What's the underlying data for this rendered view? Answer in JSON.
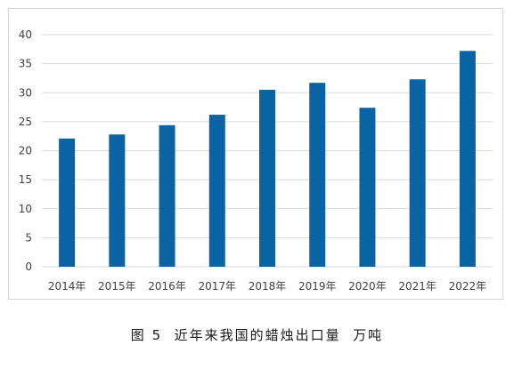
{
  "caption": "图 5  近年来我国的蜡烛出口量  万吨",
  "colors": {
    "bar": "#0a64a4",
    "grid": "#d9d9d9",
    "axis_text": "#404040"
  },
  "chart_data": {
    "type": "bar",
    "title": "",
    "xlabel": "",
    "ylabel": "",
    "categories": [
      "2014年",
      "2015年",
      "2016年",
      "2017年",
      "2018年",
      "2019年",
      "2020年",
      "2021年",
      "2022年"
    ],
    "values": [
      22.1,
      22.8,
      24.4,
      26.2,
      30.5,
      31.7,
      27.4,
      32.3,
      37.2
    ],
    "ylim": [
      0,
      40
    ],
    "yticks": [
      0,
      5,
      10,
      15,
      20,
      25,
      30,
      35,
      40
    ],
    "grid": true,
    "legend": "none"
  }
}
